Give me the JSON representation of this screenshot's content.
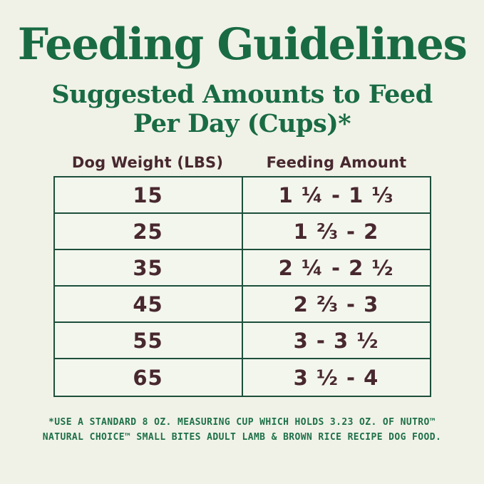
{
  "title": "Feeding Guidelines",
  "subtitle": {
    "line1": "Suggested Amounts to Feed",
    "line2": "Per Day (Cups)*"
  },
  "table": {
    "headers": [
      "Dog Weight (LBS)",
      "Feeding Amount"
    ],
    "rows": [
      [
        "15",
        "1 ¼ - 1 ⅓"
      ],
      [
        "25",
        "1 ⅔ - 2"
      ],
      [
        "35",
        "2 ¼ - 2 ½"
      ],
      [
        "45",
        "2 ⅔ - 3"
      ],
      [
        "55",
        "3 - 3 ½"
      ],
      [
        "65",
        "3 ½ - 4"
      ]
    ]
  },
  "footnote": {
    "line1": "*USE A STANDARD 8 OZ. MEASURING CUP WHICH HOLDS 3.23 OZ. OF NUTRO™",
    "line2": "NATURAL CHOICE™ SMALL BITES ADULT LAMB & BROWN RICE RECIPE DOG FOOD."
  },
  "colors": {
    "background": "#f0f2e7",
    "cell_background": "#f3f6ed",
    "title_green": "#196b44",
    "border_green": "#1d4f3c",
    "text_brown": "#48282f",
    "footnote_green": "#1e7049"
  }
}
